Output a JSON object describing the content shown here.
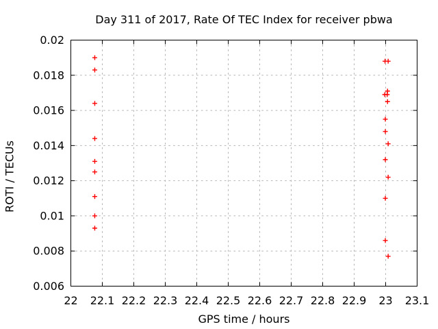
{
  "chart_data": {
    "type": "scatter",
    "title": "Day 311 of 2017, Rate Of TEC Index for receiver pbwa",
    "xlabel": "GPS time / hours",
    "ylabel": "ROTI / TECUs",
    "xlim": [
      22,
      23.1
    ],
    "ylim": [
      0.006,
      0.02
    ],
    "xticks": [
      22,
      22.1,
      22.2,
      22.3,
      22.4,
      22.5,
      22.6,
      22.7,
      22.8,
      22.9,
      23,
      23.1
    ],
    "xtick_labels": [
      "22",
      "22.1",
      "22.2",
      "22.3",
      "22.4",
      "22.5",
      "22.6",
      "22.7",
      "22.8",
      "22.9",
      "23",
      "23.1"
    ],
    "yticks": [
      0.006,
      0.008,
      0.01,
      0.012,
      0.014,
      0.016,
      0.018,
      0.02
    ],
    "ytick_labels": [
      "0.006",
      "0.008",
      "0.01",
      "0.012",
      "0.014",
      "0.016",
      "0.018",
      "0.02"
    ],
    "grid": true,
    "legend": "none",
    "marker": "plus",
    "marker_color": "#ff0000",
    "grid_color": "#b4b4b4",
    "axis_color": "#000000",
    "background_color": "#ffffff",
    "series": [
      {
        "name": "ROTI",
        "points": [
          [
            22.076,
            0.019
          ],
          [
            22.076,
            0.0183
          ],
          [
            22.076,
            0.0164
          ],
          [
            22.076,
            0.0144
          ],
          [
            22.076,
            0.0131
          ],
          [
            22.076,
            0.0125
          ],
          [
            22.076,
            0.0111
          ],
          [
            22.076,
            0.01
          ],
          [
            22.076,
            0.0093
          ],
          [
            22.998,
            0.0188
          ],
          [
            23.008,
            0.0188
          ],
          [
            23.006,
            0.0171
          ],
          [
            22.997,
            0.0169
          ],
          [
            23.005,
            0.0169
          ],
          [
            23.006,
            0.0165
          ],
          [
            22.999,
            0.0155
          ],
          [
            22.999,
            0.0148
          ],
          [
            23.008,
            0.0141
          ],
          [
            22.999,
            0.0132
          ],
          [
            23.008,
            0.0122
          ],
          [
            22.999,
            0.011
          ],
          [
            22.999,
            0.0086
          ],
          [
            23.008,
            0.0077
          ]
        ]
      }
    ]
  }
}
